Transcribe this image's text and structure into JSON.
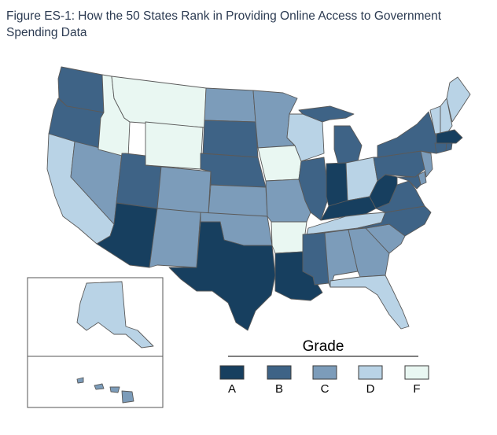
{
  "title": "Figure ES-1: How the 50 States Rank in Providing Online Access to Government Spending Data",
  "legend": {
    "heading": "Grade",
    "grades": [
      {
        "label": "A",
        "color": "#173f5f"
      },
      {
        "label": "B",
        "color": "#3e6386"
      },
      {
        "label": "C",
        "color": "#7c9cba"
      },
      {
        "label": "D",
        "color": "#b9d3e6"
      },
      {
        "label": "F",
        "color": "#e9f7f2"
      }
    ]
  },
  "state_grades": {
    "WA": "B",
    "OR": "B",
    "CA": "D",
    "NV": "C",
    "ID": "F",
    "MT": "F",
    "WY": "F",
    "UT": "B",
    "AZ": "A",
    "CO": "C",
    "NM": "C",
    "ND": "C",
    "SD": "B",
    "NE": "B",
    "KS": "C",
    "OK": "C",
    "TX": "A",
    "MN": "C",
    "IA": "F",
    "MO": "C",
    "AR": "F",
    "LA": "A",
    "WI": "D",
    "IL": "B",
    "MI": "B",
    "IN": "A",
    "OH": "D",
    "KY": "A",
    "TN": "D",
    "MS": "B",
    "AL": "C",
    "GA": "C",
    "FL": "D",
    "SC": "C",
    "NC": "B",
    "VA": "B",
    "WV": "A",
    "PA": "B",
    "NY": "B",
    "VT": "D",
    "NH": "D",
    "ME": "D",
    "MA": "A",
    "CT": "B",
    "RI": "B",
    "NJ": "C",
    "DE": "C",
    "MD": "B",
    "AK": "D",
    "HI": "C"
  }
}
